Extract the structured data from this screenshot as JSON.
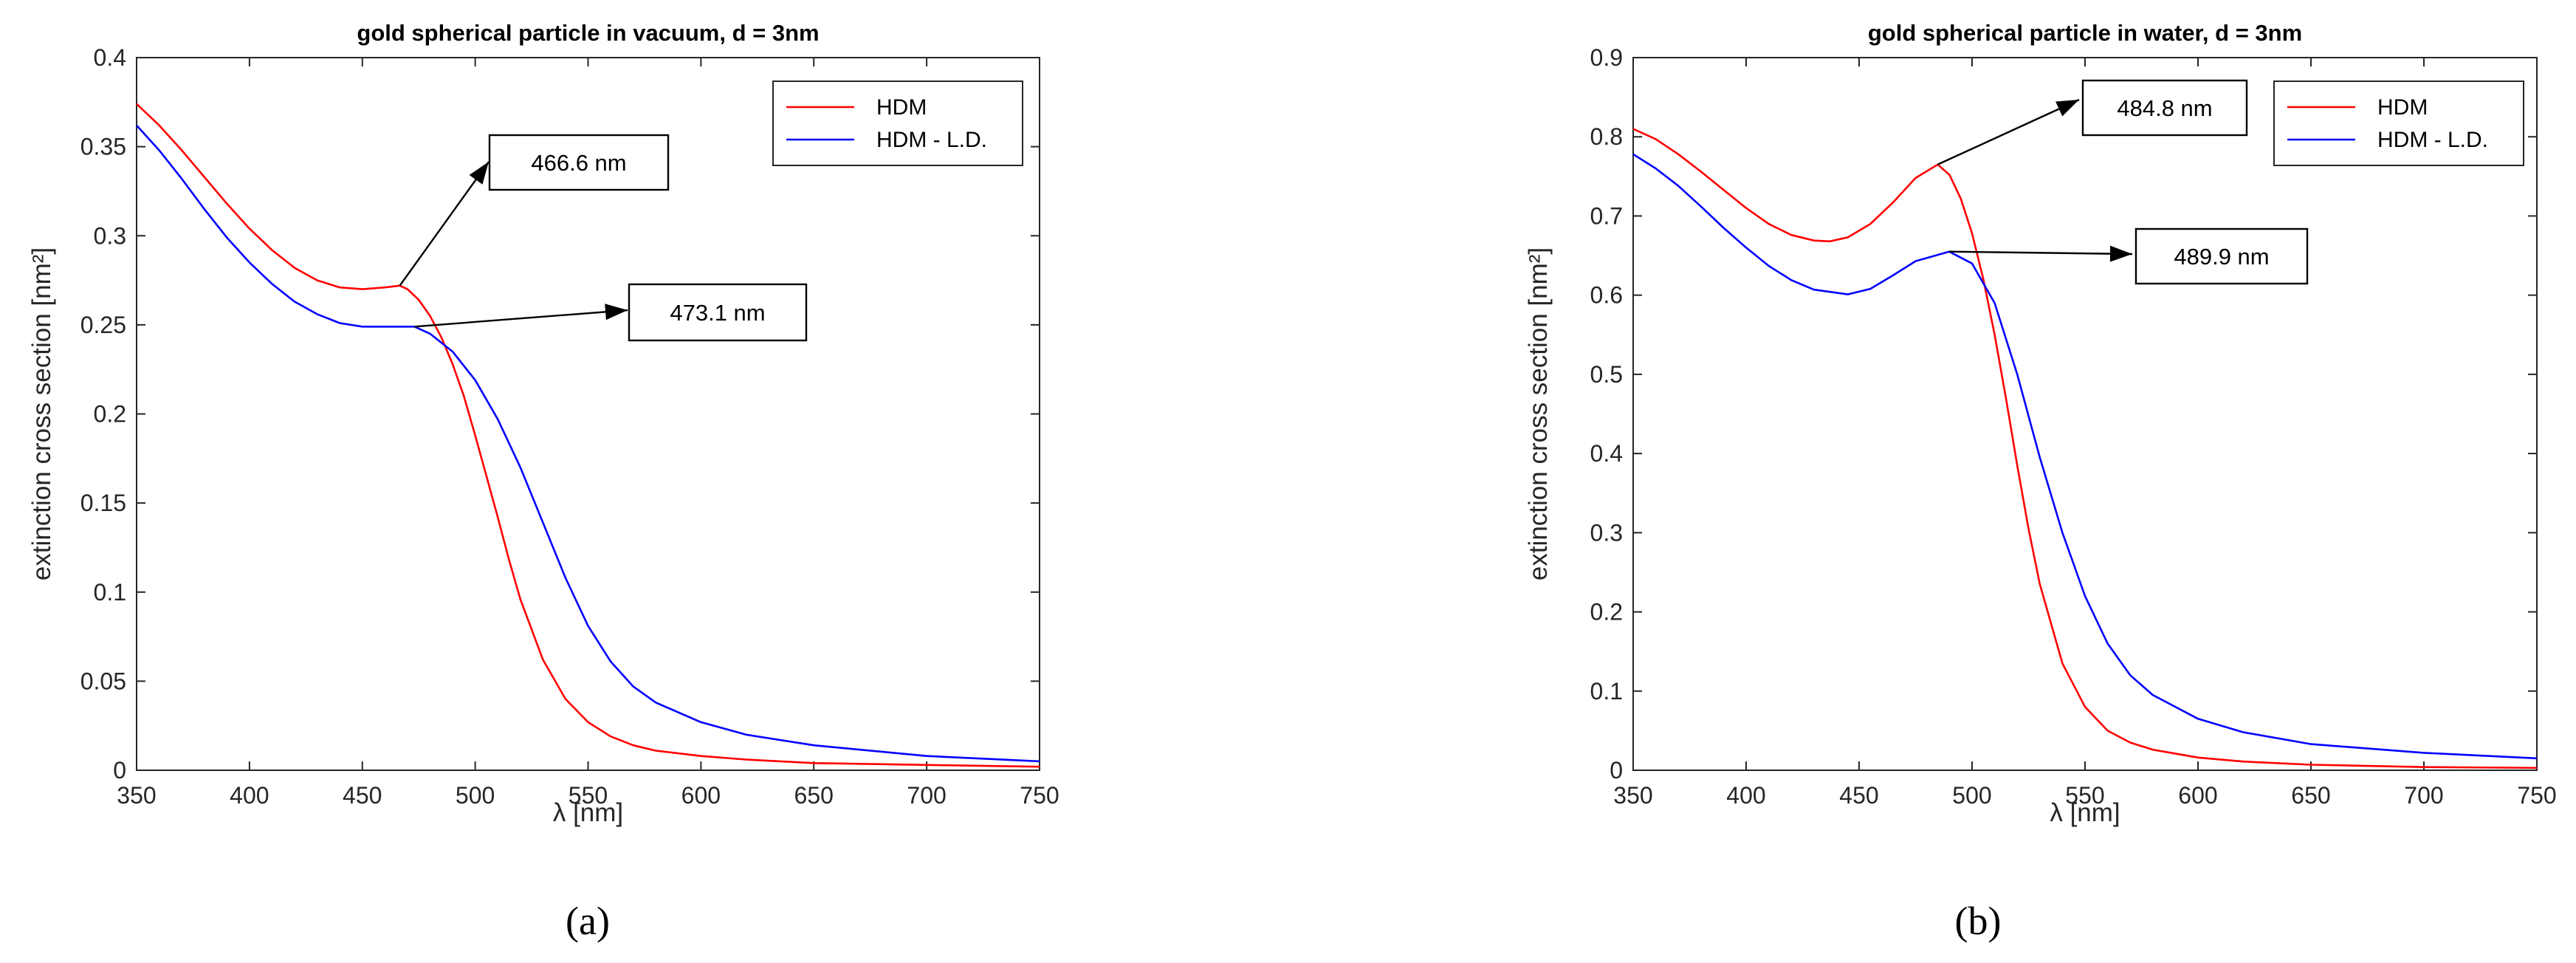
{
  "chart_data": [
    {
      "type": "line",
      "panel_label": "(a)",
      "title": "gold spherical particle in vacuum, d = 3nm",
      "xlabel": "λ [nm]",
      "ylabel": "extinction cross section [nm²]",
      "xlim": [
        350,
        750
      ],
      "ylim": [
        0,
        0.4
      ],
      "xticks": [
        350,
        400,
        450,
        500,
        550,
        600,
        650,
        700,
        750
      ],
      "yticks": [
        0,
        0.05,
        0.1,
        0.15,
        0.2,
        0.25,
        0.3,
        0.35,
        0.4
      ],
      "ytick_labels": [
        "0",
        "0.05",
        "0.1",
        "0.15",
        "0.2",
        "0.25",
        "0.3",
        "0.35",
        "0.4"
      ],
      "grid": false,
      "legend_position": "top-right",
      "series": [
        {
          "name": "HDM",
          "color": "#ff0000",
          "x": [
            350,
            360,
            370,
            380,
            390,
            400,
            410,
            420,
            430,
            440,
            450,
            460,
            466.6,
            470,
            475,
            480,
            485,
            490,
            495,
            500,
            505,
            510,
            515,
            520,
            530,
            540,
            550,
            560,
            570,
            580,
            600,
            620,
            650,
            700,
            750
          ],
          "y": [
            0.374,
            0.362,
            0.348,
            0.333,
            0.318,
            0.304,
            0.292,
            0.282,
            0.275,
            0.271,
            0.27,
            0.271,
            0.272,
            0.27,
            0.264,
            0.255,
            0.243,
            0.228,
            0.21,
            0.188,
            0.165,
            0.142,
            0.118,
            0.096,
            0.062,
            0.04,
            0.027,
            0.019,
            0.014,
            0.011,
            0.008,
            0.006,
            0.004,
            0.003,
            0.002
          ]
        },
        {
          "name": "HDM - L.D.",
          "color": "#0000ff",
          "x": [
            350,
            360,
            370,
            380,
            390,
            400,
            410,
            420,
            430,
            440,
            450,
            460,
            473.1,
            480,
            490,
            500,
            510,
            520,
            530,
            540,
            550,
            560,
            570,
            580,
            600,
            620,
            650,
            700,
            750
          ],
          "y": [
            0.362,
            0.348,
            0.332,
            0.315,
            0.299,
            0.285,
            0.273,
            0.263,
            0.256,
            0.251,
            0.249,
            0.249,
            0.249,
            0.245,
            0.235,
            0.219,
            0.197,
            0.17,
            0.139,
            0.108,
            0.081,
            0.061,
            0.047,
            0.038,
            0.027,
            0.02,
            0.014,
            0.008,
            0.005
          ]
        }
      ],
      "annotations": [
        {
          "text": "466.6 nm",
          "x": 466.6,
          "y": 0.272
        },
        {
          "text": "473.1 nm",
          "x": 473.1,
          "y": 0.249
        }
      ]
    },
    {
      "type": "line",
      "panel_label": "(b)",
      "title": "gold spherical particle in water, d = 3nm",
      "xlabel": "λ [nm]",
      "ylabel": "extinction cross section [nm²]",
      "xlim": [
        350,
        750
      ],
      "ylim": [
        0,
        0.9
      ],
      "xticks": [
        350,
        400,
        450,
        500,
        550,
        600,
        650,
        700,
        750
      ],
      "yticks": [
        0,
        0.1,
        0.2,
        0.3,
        0.4,
        0.5,
        0.6,
        0.7,
        0.8,
        0.9
      ],
      "ytick_labels": [
        "0",
        "0.1",
        "0.2",
        "0.3",
        "0.4",
        "0.5",
        "0.6",
        "0.7",
        "0.8",
        "0.9"
      ],
      "grid": false,
      "legend_position": "top-right",
      "series": [
        {
          "name": "HDM",
          "color": "#ff0000",
          "x": [
            350,
            360,
            370,
            380,
            390,
            400,
            410,
            420,
            430,
            437,
            445,
            455,
            465,
            475,
            484.8,
            490,
            495,
            500,
            505,
            510,
            515,
            520,
            525,
            530,
            540,
            550,
            560,
            570,
            580,
            600,
            620,
            650,
            700,
            750
          ],
          "y": [
            0.81,
            0.797,
            0.778,
            0.756,
            0.733,
            0.71,
            0.69,
            0.676,
            0.669,
            0.668,
            0.673,
            0.69,
            0.717,
            0.748,
            0.765,
            0.752,
            0.722,
            0.678,
            0.62,
            0.55,
            0.47,
            0.385,
            0.305,
            0.235,
            0.135,
            0.08,
            0.05,
            0.035,
            0.026,
            0.016,
            0.011,
            0.007,
            0.004,
            0.003
          ]
        },
        {
          "name": "HDM - L.D.",
          "color": "#0000ff",
          "x": [
            350,
            360,
            370,
            380,
            390,
            400,
            410,
            420,
            430,
            445,
            455,
            465,
            475,
            489.9,
            500,
            510,
            520,
            530,
            540,
            550,
            560,
            570,
            580,
            600,
            620,
            650,
            700,
            750
          ],
          "y": [
            0.778,
            0.76,
            0.738,
            0.712,
            0.685,
            0.66,
            0.637,
            0.619,
            0.607,
            0.601,
            0.608,
            0.625,
            0.643,
            0.655,
            0.64,
            0.59,
            0.5,
            0.395,
            0.3,
            0.22,
            0.16,
            0.12,
            0.095,
            0.065,
            0.048,
            0.033,
            0.022,
            0.015
          ]
        }
      ],
      "annotations": [
        {
          "text": "484.8 nm",
          "x": 484.8,
          "y": 0.765
        },
        {
          "text": "489.9 nm",
          "x": 489.9,
          "y": 0.655
        }
      ]
    }
  ]
}
